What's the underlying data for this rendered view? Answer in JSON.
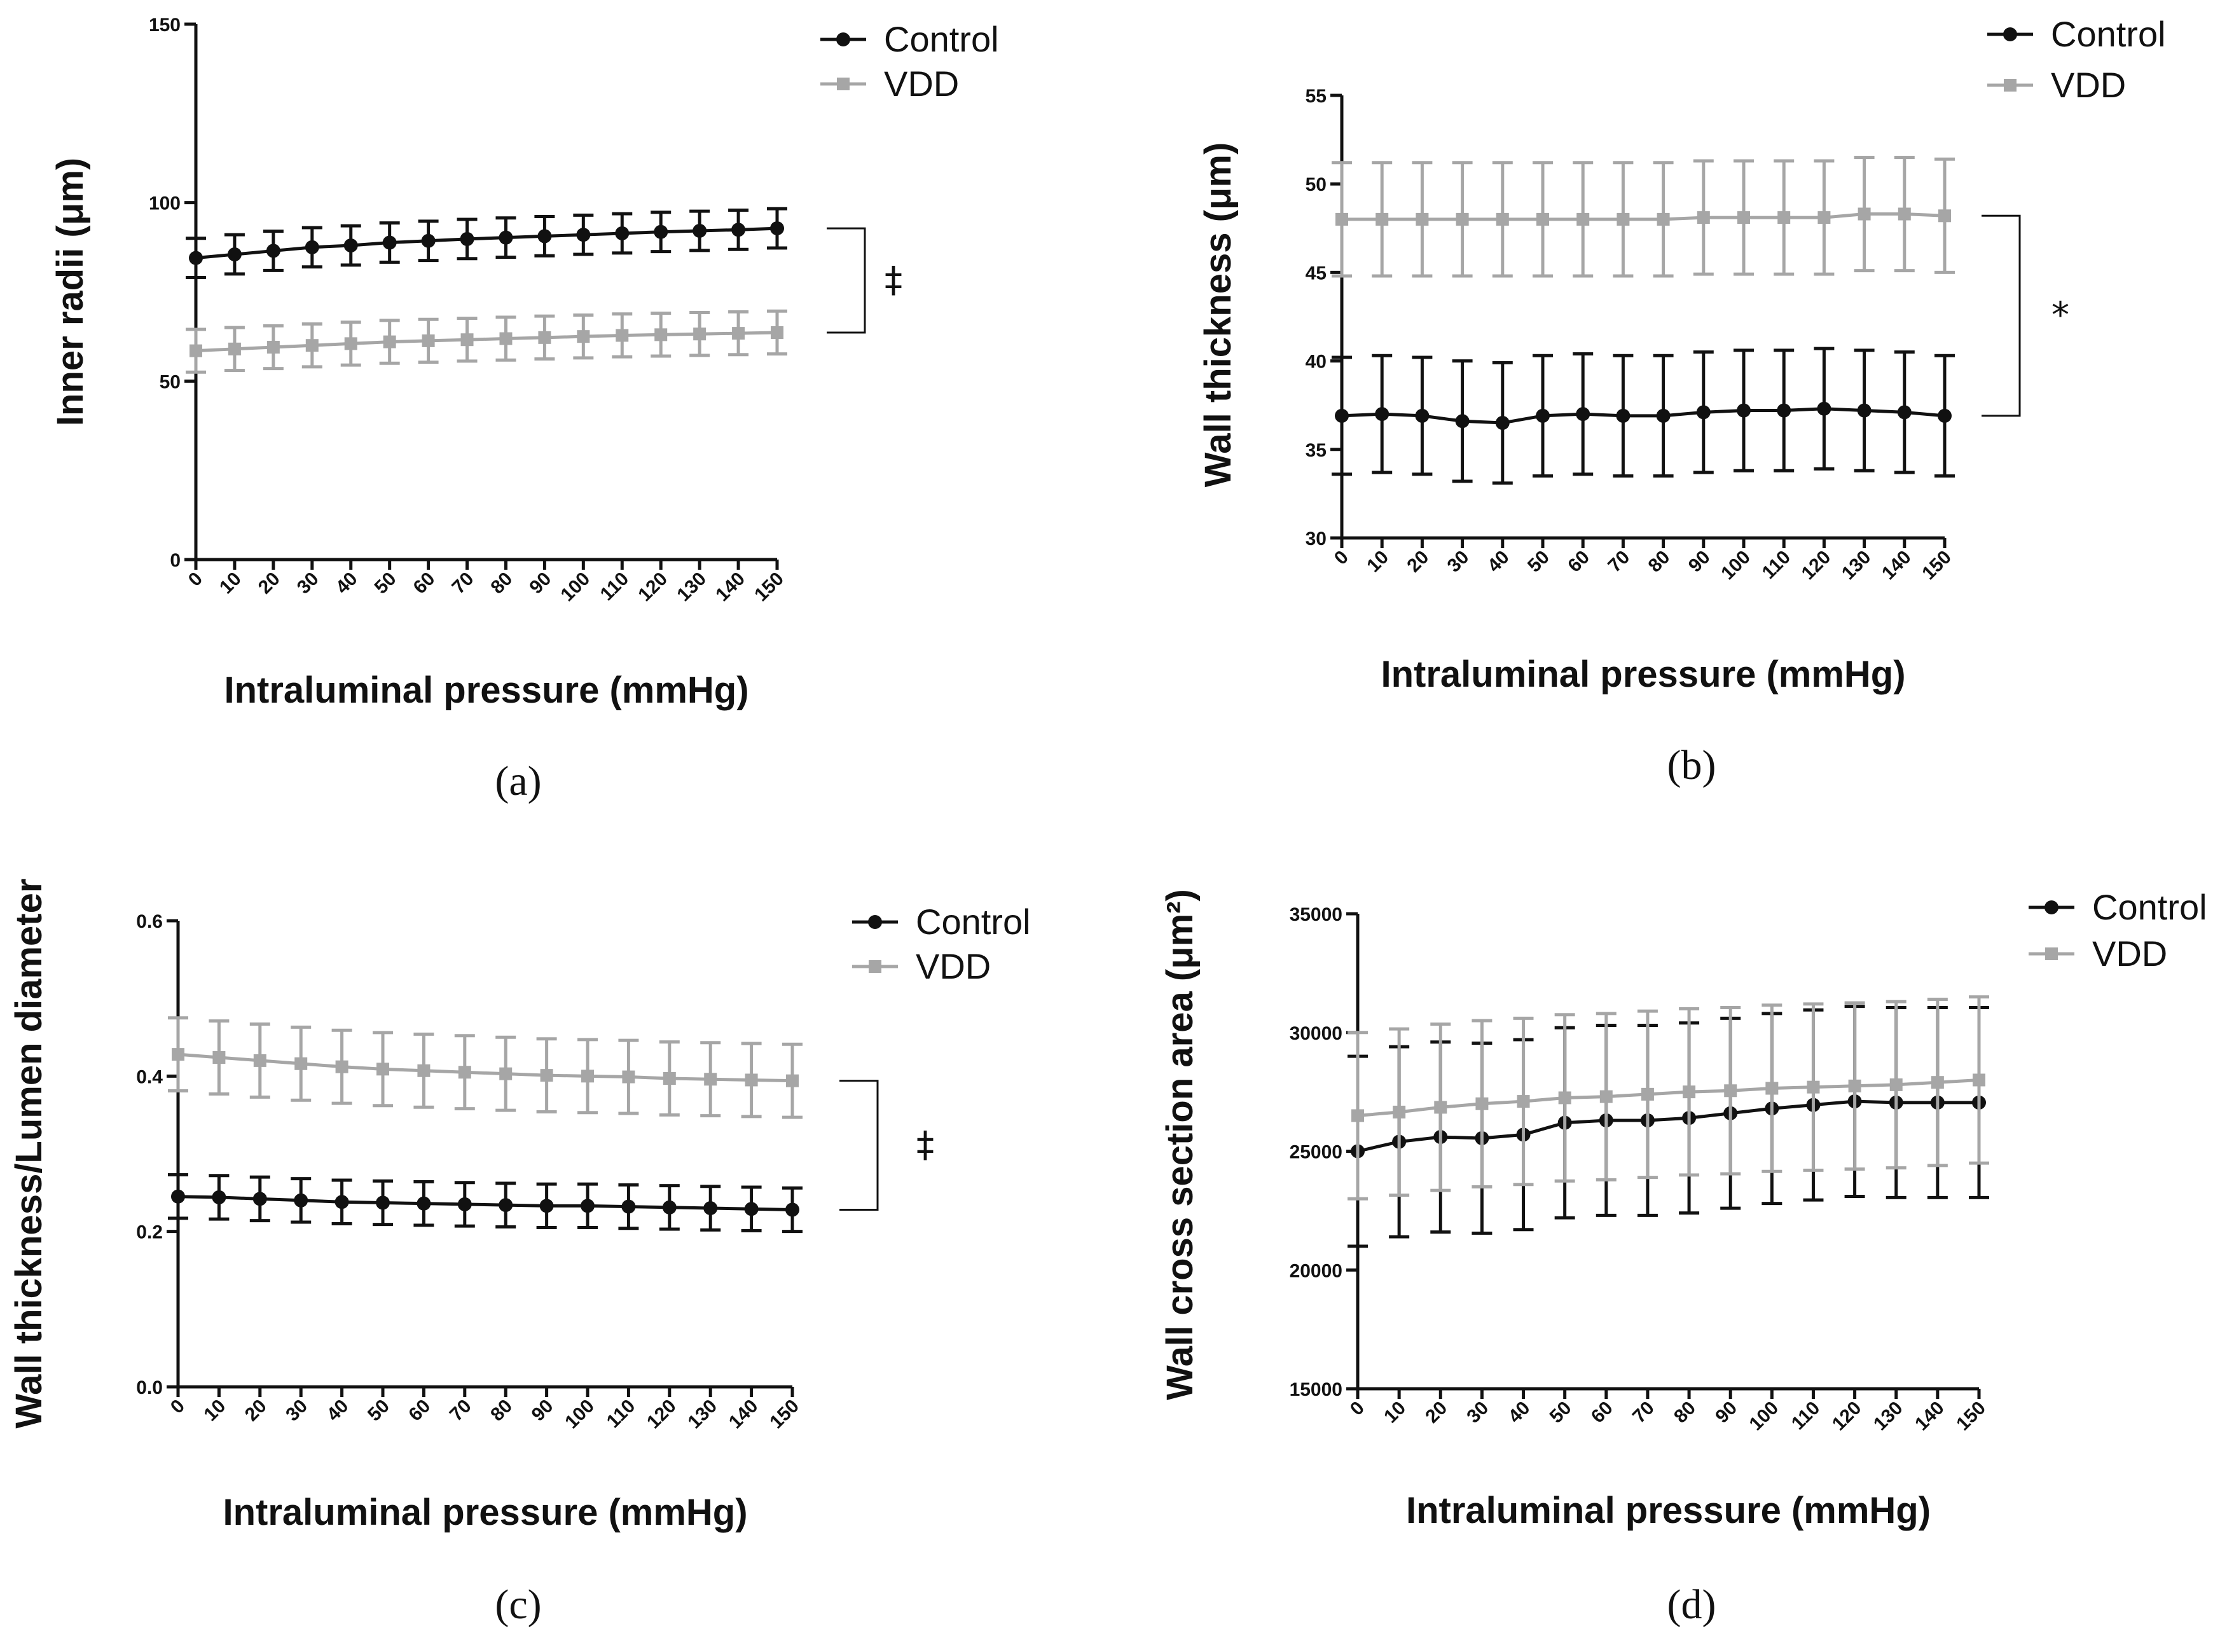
{
  "chart_data": [
    {
      "type": "line",
      "panel_label": "(a)",
      "xlabel": "Intraluminal pressure (mmHg)",
      "ylabel": "Inner radii (μm)",
      "ylim": [
        0,
        150
      ],
      "yticks": [
        "0",
        "50",
        "100",
        "150"
      ],
      "x": [
        "0",
        "10",
        "20",
        "30",
        "40",
        "50",
        "60",
        "70",
        "80",
        "90",
        "100",
        "110",
        "120",
        "130",
        "140",
        "150"
      ],
      "significance": "‡",
      "series": [
        {
          "name": "Control",
          "color": "#111111",
          "marker": "circle",
          "values": [
            84.5,
            85.5,
            86.5,
            87.5,
            88,
            88.8,
            89.3,
            89.8,
            90.2,
            90.6,
            91,
            91.4,
            91.8,
            92.1,
            92.4,
            92.8
          ],
          "errors": [
            5.5,
            5.5,
            5.5,
            5.5,
            5.5,
            5.5,
            5.5,
            5.5,
            5.5,
            5.5,
            5.5,
            5.5,
            5.5,
            5.5,
            5.5,
            5.5
          ]
        },
        {
          "name": "VDD",
          "color": "#a6a6a6",
          "marker": "square",
          "values": [
            58.5,
            59,
            59.5,
            60,
            60.5,
            61,
            61.3,
            61.6,
            61.9,
            62.2,
            62.5,
            62.8,
            63,
            63.2,
            63.4,
            63.6
          ],
          "errors": [
            6,
            6,
            6,
            6,
            6,
            6,
            6,
            6,
            6,
            6,
            6,
            6,
            6,
            6,
            6,
            6
          ]
        }
      ]
    },
    {
      "type": "line",
      "panel_label": "(b)",
      "xlabel": "Intraluminal pressure (mmHg)",
      "ylabel": "Wall thickness (μm)",
      "ylim": [
        30,
        55
      ],
      "yticks": [
        "30",
        "35",
        "40",
        "45",
        "50",
        "55"
      ],
      "x": [
        "0",
        "10",
        "20",
        "30",
        "40",
        "50",
        "60",
        "70",
        "80",
        "90",
        "100",
        "110",
        "120",
        "130",
        "140",
        "150"
      ],
      "significance": "*",
      "series": [
        {
          "name": "Control",
          "color": "#111111",
          "marker": "circle",
          "values": [
            36.9,
            37,
            36.9,
            36.6,
            36.5,
            36.9,
            37,
            36.9,
            36.9,
            37.1,
            37.2,
            37.2,
            37.3,
            37.2,
            37.1,
            36.9
          ],
          "errors": [
            3.3,
            3.3,
            3.3,
            3.4,
            3.4,
            3.4,
            3.4,
            3.4,
            3.4,
            3.4,
            3.4,
            3.4,
            3.4,
            3.4,
            3.4,
            3.4
          ]
        },
        {
          "name": "VDD",
          "color": "#a6a6a6",
          "marker": "square",
          "values": [
            48,
            48,
            48,
            48,
            48,
            48,
            48,
            48,
            48,
            48.1,
            48.1,
            48.1,
            48.1,
            48.3,
            48.3,
            48.2
          ],
          "errors": [
            3.2,
            3.2,
            3.2,
            3.2,
            3.2,
            3.2,
            3.2,
            3.2,
            3.2,
            3.2,
            3.2,
            3.2,
            3.2,
            3.2,
            3.2,
            3.2
          ]
        }
      ]
    },
    {
      "type": "line",
      "panel_label": "(c)",
      "xlabel": "Intraluminal pressure (mmHg)",
      "ylabel": "Wall thickness/Lumen diameter",
      "ylim": [
        0,
        0.6
      ],
      "yticks": [
        "0.0",
        "0.2",
        "0.4",
        "0.6"
      ],
      "x": [
        "0",
        "10",
        "20",
        "30",
        "40",
        "50",
        "60",
        "70",
        "80",
        "90",
        "100",
        "110",
        "120",
        "130",
        "140",
        "150"
      ],
      "significance": "‡",
      "series": [
        {
          "name": "Control",
          "color": "#111111",
          "marker": "circle",
          "values": [
            0.245,
            0.244,
            0.242,
            0.24,
            0.238,
            0.237,
            0.236,
            0.235,
            0.234,
            0.233,
            0.233,
            0.232,
            0.231,
            0.23,
            0.229,
            0.228
          ],
          "errors": [
            0.028,
            0.028,
            0.028,
            0.028,
            0.028,
            0.028,
            0.028,
            0.028,
            0.028,
            0.028,
            0.028,
            0.028,
            0.028,
            0.028,
            0.028,
            0.028
          ]
        },
        {
          "name": "VDD",
          "color": "#a6a6a6",
          "marker": "square",
          "values": [
            0.428,
            0.424,
            0.42,
            0.416,
            0.412,
            0.409,
            0.407,
            0.405,
            0.403,
            0.401,
            0.4,
            0.399,
            0.397,
            0.396,
            0.395,
            0.394
          ],
          "errors": [
            0.047,
            0.047,
            0.047,
            0.047,
            0.047,
            0.047,
            0.047,
            0.047,
            0.047,
            0.047,
            0.047,
            0.047,
            0.047,
            0.047,
            0.047,
            0.047
          ]
        }
      ]
    },
    {
      "type": "line",
      "panel_label": "(d)",
      "xlabel": "Intraluminal pressure (mmHg)",
      "ylabel": "Wall cross section area (μm²)",
      "ylim": [
        15000,
        35000
      ],
      "yticks": [
        "15000",
        "20000",
        "25000",
        "30000",
        "35000"
      ],
      "x": [
        "0",
        "10",
        "20",
        "30",
        "40",
        "50",
        "60",
        "70",
        "80",
        "90",
        "100",
        "110",
        "120",
        "130",
        "140",
        "150"
      ],
      "significance": "",
      "series": [
        {
          "name": "Control",
          "color": "#111111",
          "marker": "circle",
          "values": [
            25000,
            25400,
            25600,
            25550,
            25700,
            26200,
            26300,
            26300,
            26400,
            26600,
            26800,
            26950,
            27100,
            27050,
            27050,
            27050
          ],
          "errors": [
            4000,
            4000,
            4000,
            4000,
            4000,
            4000,
            4000,
            4000,
            4000,
            4000,
            4000,
            4000,
            4000,
            4000,
            4000,
            4000
          ]
        },
        {
          "name": "VDD",
          "color": "#a6a6a6",
          "marker": "square",
          "values": [
            26500,
            26650,
            26850,
            27000,
            27100,
            27250,
            27300,
            27400,
            27500,
            27550,
            27650,
            27700,
            27750,
            27800,
            27900,
            28000
          ],
          "errors": [
            3500,
            3500,
            3500,
            3500,
            3500,
            3500,
            3500,
            3500,
            3500,
            3500,
            3500,
            3500,
            3500,
            3500,
            3500,
            3500
          ]
        }
      ]
    }
  ]
}
